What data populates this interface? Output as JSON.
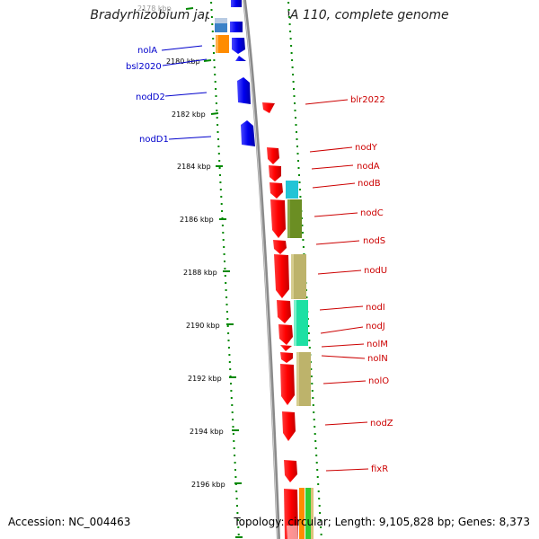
{
  "title": "Bradyrhizobium japonicum USDA 110, complete genome",
  "footer": {
    "accession": "Accession: NC_004463",
    "stats": "Topology: circular; Length: 9,105,828 bp; Genes: 8,373"
  },
  "colors": {
    "forward_gene": "#ff0000",
    "reverse_gene": "#0000ee",
    "forward_label": "#cc0000",
    "reverse_label": "#0000cc",
    "ticks": "#008800",
    "backbone": "#888888"
  },
  "ruler_ticks": [
    "2178 kbp",
    "2180 kbp",
    "2182 kbp",
    "2184 kbp",
    "2186 kbp",
    "2188 kbp",
    "2190 kbp",
    "2192 kbp",
    "2194 kbp",
    "2196 kbp"
  ],
  "reverse_labels": [
    "nolA",
    "bsl2020",
    "nodD2",
    "nodD1"
  ],
  "forward_labels": [
    "blr2022",
    "nodY",
    "nodA",
    "nodB",
    "nodC",
    "nodS",
    "nodU",
    "nodI",
    "nodJ",
    "nolM",
    "nolN",
    "nolO",
    "nodZ",
    "fixR"
  ]
}
